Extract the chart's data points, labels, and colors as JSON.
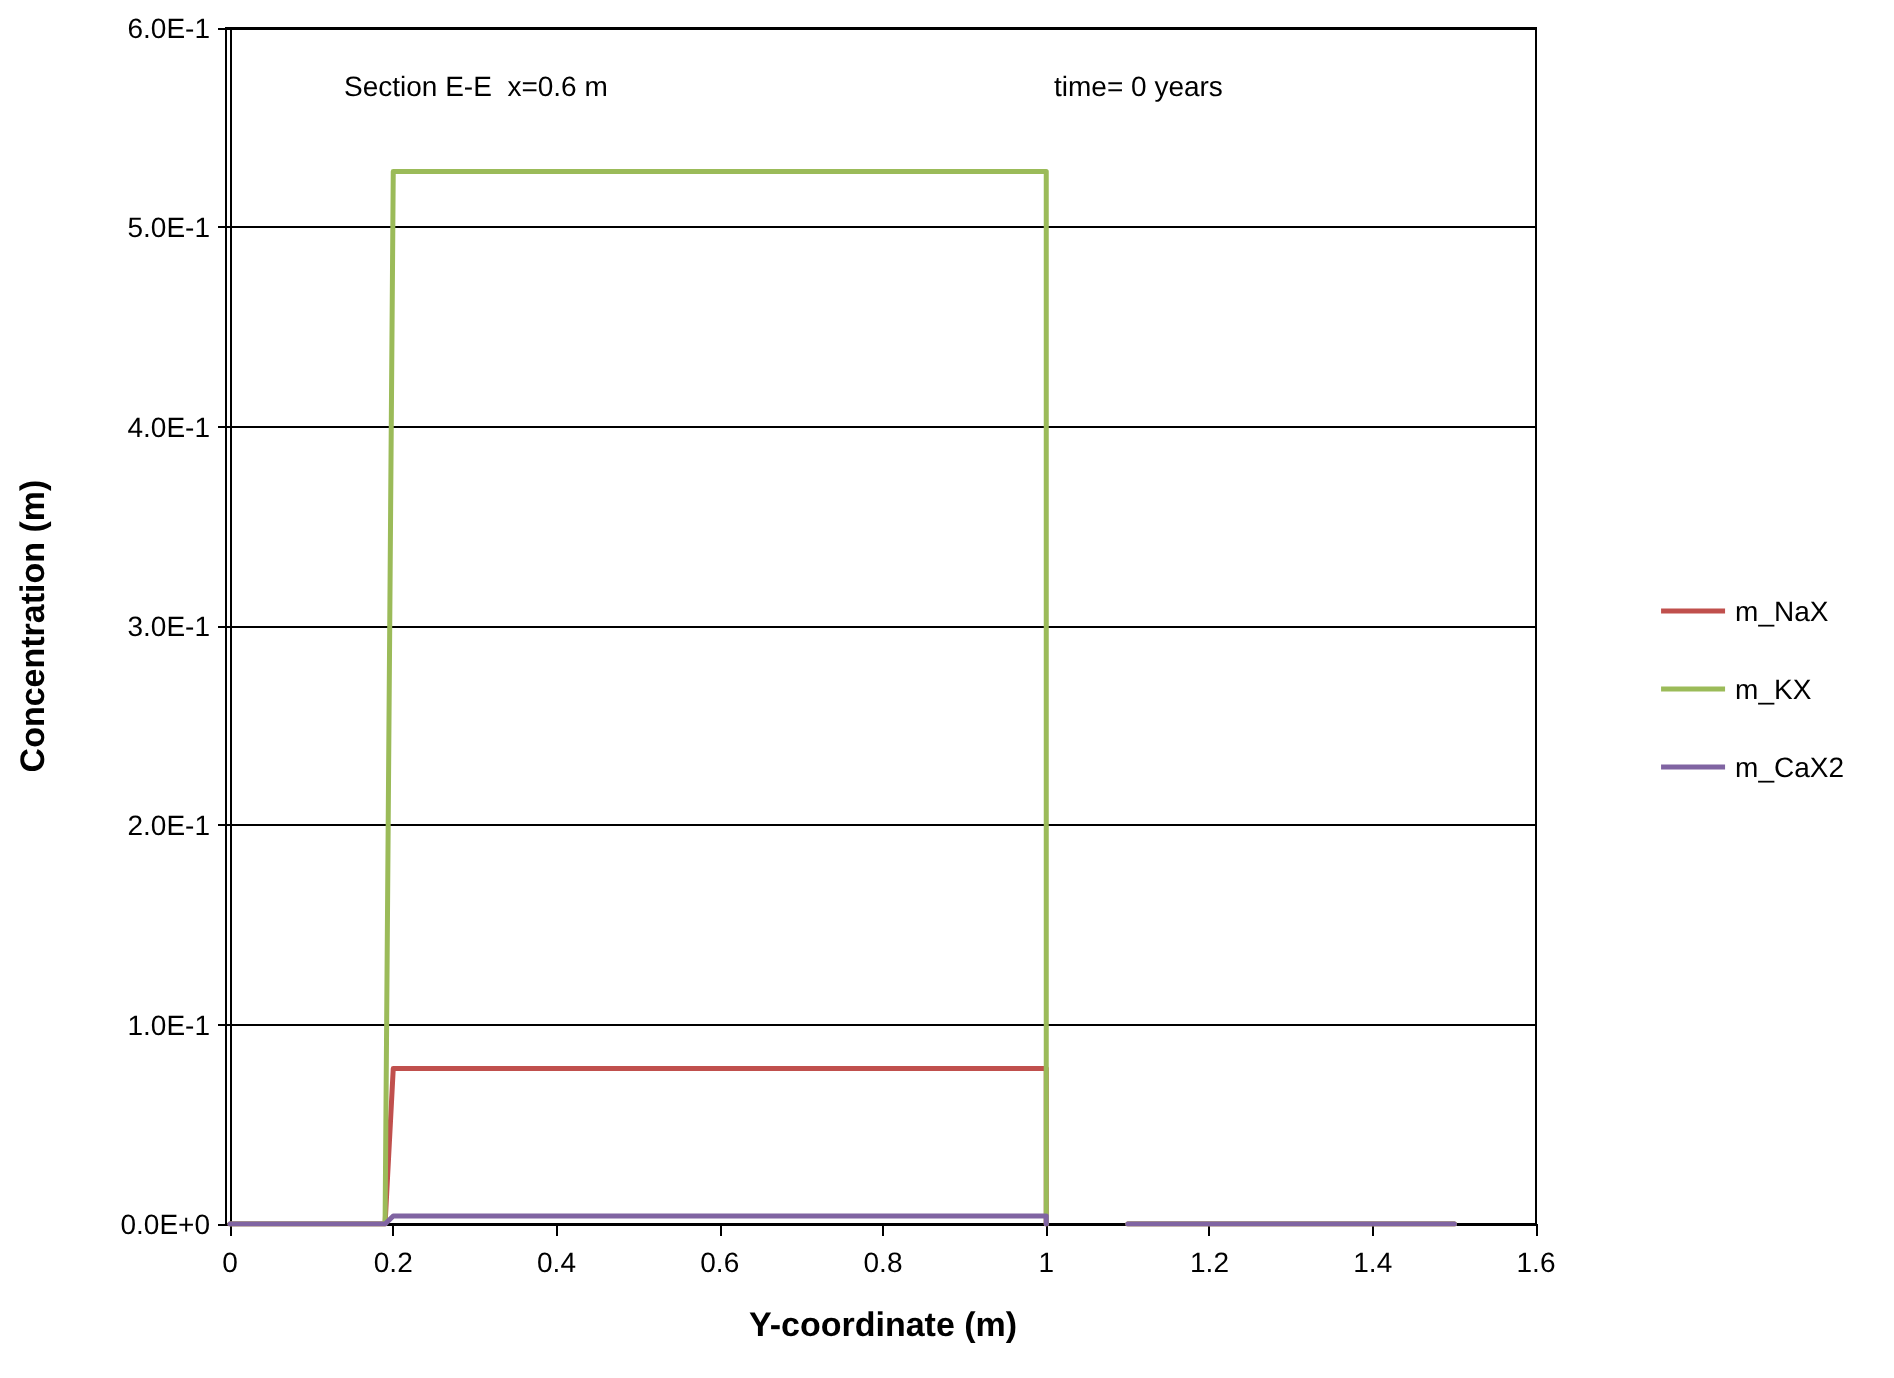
{
  "chart_data": {
    "type": "line",
    "xlabel": "Y-coordinate (m)",
    "ylabel": "Concentration (m)",
    "annotations": [
      "Section E-E  x=0.6 m",
      "time= 0 years"
    ],
    "xlim": [
      0,
      1.6
    ],
    "xticks": [
      0,
      0.2,
      0.4,
      0.6,
      0.8,
      1,
      1.2,
      1.4,
      1.6
    ],
    "ylim": [
      0,
      0.6
    ],
    "yticks": [
      {
        "value": 0,
        "label": "0.0E+0"
      },
      {
        "value": 0.1,
        "label": "1.0E-1"
      },
      {
        "value": 0.2,
        "label": "2.0E-1"
      },
      {
        "value": 0.3,
        "label": "3.0E-1"
      },
      {
        "value": 0.4,
        "label": "4.0E-1"
      },
      {
        "value": 0.5,
        "label": "5.0E-1"
      },
      {
        "value": 0.6,
        "label": "6.0E-1"
      }
    ],
    "grid": "y",
    "legend": "right",
    "marker": "none",
    "line_style": "solid",
    "x": [
      0,
      0.19,
      0.2,
      1,
      1,
      1.05,
      1.1,
      1.5
    ],
    "series": [
      {
        "name": "m_NaX",
        "color": "#c0504d",
        "values": [
          0,
          0,
          0.078,
          0.078,
          0,
          null,
          0,
          0
        ]
      },
      {
        "name": "m_KX",
        "color": "#9bbb59",
        "values": [
          0,
          0,
          0.528,
          0.528,
          0,
          null,
          0,
          0
        ]
      },
      {
        "name": "m_CaX2",
        "color": "#8064a2",
        "values": [
          0,
          0,
          0.004,
          0.004,
          0,
          null,
          0,
          0
        ]
      }
    ]
  }
}
